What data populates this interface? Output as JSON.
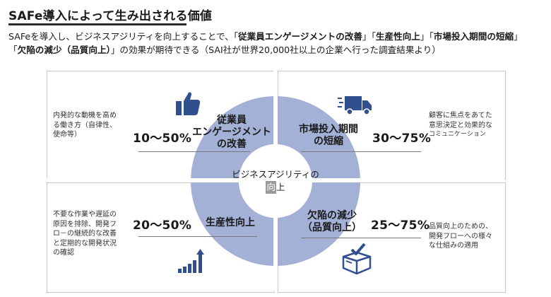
{
  "header": {
    "title": "SAFe導入によって生み出される価値"
  },
  "intro": {
    "line1_a": "SAFeを導入し、ビジネスアジリティを向上することで、「",
    "line1_b": "従業員エンゲージメントの改善",
    "line1_c": "」「",
    "line1_d": "生産性向上",
    "line1_e": "」「",
    "line1_f": "市場投入期間の短縮",
    "line1_g": "」",
    "line2_a": "「",
    "line2_b": "欠陥の減少（品質向上）",
    "line2_c": "」の効果が期待できる（SAI社が世界20,000社以上の企業へ行った調査結果より）"
  },
  "center": {
    "line1": "ビジネスアジリティの",
    "line2_pre": "",
    "line2_hl": "向",
    "line2_post": "上"
  },
  "quadrants": {
    "engagement": {
      "label_1": "従業員",
      "label_2": "エンゲージメント",
      "label_3": "の改善",
      "range": "10～50%",
      "desc_1": "内発的な動機を高め",
      "desc_2": "る働き方（自律性、",
      "desc_3": "使命等）",
      "icon": "thumbs-up-icon"
    },
    "time_to_market": {
      "label_1": "市場投入期間",
      "label_2": "の短縮",
      "range": "30～75%",
      "desc_1": "顧客に焦点をあてた",
      "desc_2": "意思決定と効果的な",
      "desc_3": "コミュニケーション",
      "icon": "delivery-truck-icon"
    },
    "productivity": {
      "label_1": "生産性向上",
      "range": "20～50%",
      "desc_1": "不要な作業や遅延の",
      "desc_2": "原因を排除、開発フ",
      "desc_3": "ロ－の継続的な改善",
      "desc_4": "と定期的な開発状況",
      "desc_5": "の確認",
      "icon": "bar-chart-growth-icon"
    },
    "quality": {
      "label_1": "欠陥の減少",
      "label_2": "（品質向上）",
      "range": "25～75%",
      "desc_1": "品質向上のための、",
      "desc_2": "開発フローへの様々",
      "desc_3": "な仕組みの適用",
      "icon": "checked-box-icon"
    }
  },
  "colors": {
    "ring": "#a3b1d6",
    "icon": "#2f4f8f",
    "panel_border": "#c9c9c9"
  }
}
